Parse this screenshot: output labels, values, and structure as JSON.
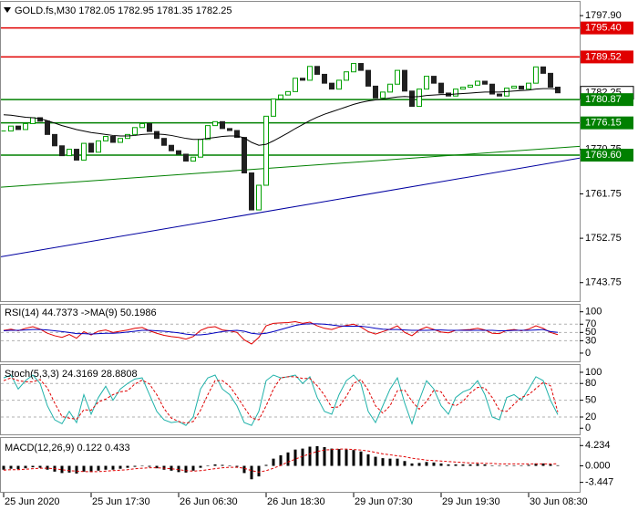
{
  "chart_data": [
    {
      "type": "candlestick",
      "title": "GOLD.fs,M30  1782.05 1782.95 1781.35 1782.25",
      "categories": [
        "25 Jun 2020",
        null,
        null,
        null,
        null,
        null,
        null,
        null,
        null,
        null,
        null,
        null,
        "25 Jun 17:30",
        null,
        null,
        null,
        null,
        null,
        null,
        null,
        null,
        null,
        null,
        null,
        "26 Jun 06:30",
        null,
        null,
        null,
        null,
        null,
        null,
        null,
        null,
        null,
        null,
        null,
        "26 Jun 18:30",
        null,
        null,
        null,
        null,
        null,
        null,
        null,
        null,
        null,
        null,
        null,
        "29 Jun 07:30",
        null,
        null,
        null,
        null,
        null,
        null,
        null,
        null,
        null,
        null,
        null,
        "29 Jun 19:30",
        null,
        null,
        null,
        null,
        null,
        null,
        null,
        null,
        null,
        null,
        null,
        "30 Jun 08:30",
        null,
        null,
        null,
        null
      ],
      "close": [
        1774.5,
        1775.5,
        1774.8,
        1776.0,
        1777.2,
        1776.5,
        1773.8,
        1771.5,
        1769.5,
        1770.8,
        1768.6,
        1772.0,
        1770.2,
        1772.5,
        1773.4,
        1772.2,
        1773.0,
        1773.8,
        1775.2,
        1776.0,
        1774.4,
        1773.0,
        1771.6,
        1770.5,
        1769.8,
        1768.4,
        1769.2,
        1772.8,
        1775.6,
        1776.4,
        1775.0,
        1774.6,
        1773.2,
        1766.0,
        1758.5,
        1763.5,
        1777.5,
        1781.0,
        1781.8,
        1782.5,
        1785.2,
        1784.8,
        1787.6,
        1786.0,
        1784.2,
        1783.0,
        1784.8,
        1786.5,
        1788.2,
        1786.8,
        1783.6,
        1781.2,
        1782.4,
        1784.0,
        1786.8,
        1782.6,
        1779.5,
        1783.0,
        1785.6,
        1784.2,
        1782.2,
        1781.6,
        1783.0,
        1783.4,
        1783.8,
        1784.6,
        1784.0,
        1782.0,
        1781.6,
        1783.2,
        1783.6,
        1783.0,
        1784.2,
        1787.5,
        1786.2,
        1783.4,
        1782.25
      ],
      "up_color": "#00a000",
      "down_color": "#202020",
      "ma": {
        "color": "#000000",
        "values": [
          1777.8,
          1777.7,
          1777.5,
          1777.3,
          1777.2,
          1777.0,
          1776.6,
          1776.1,
          1775.6,
          1775.2,
          1774.8,
          1774.5,
          1774.2,
          1774.0,
          1773.8,
          1773.6,
          1773.5,
          1773.5,
          1773.6,
          1773.8,
          1773.9,
          1773.9,
          1773.8,
          1773.6,
          1773.3,
          1773.0,
          1772.8,
          1772.8,
          1773.0,
          1773.2,
          1773.4,
          1773.5,
          1773.5,
          1773.1,
          1772.2,
          1771.6,
          1771.8,
          1772.5,
          1773.3,
          1774.1,
          1775.0,
          1775.8,
          1776.6,
          1777.3,
          1777.9,
          1778.4,
          1778.9,
          1779.4,
          1779.9,
          1780.3,
          1780.6,
          1780.8,
          1781.0,
          1781.2,
          1781.4,
          1781.5,
          1781.4,
          1781.5,
          1781.7,
          1781.8,
          1781.9,
          1781.9,
          1782.0,
          1782.1,
          1782.2,
          1782.3,
          1782.4,
          1782.4,
          1782.4,
          1782.5,
          1782.6,
          1782.7,
          1782.8,
          1783.0,
          1783.1,
          1783.1,
          1783.0
        ]
      },
      "levels": [
        {
          "value": 1795.4,
          "label": "1795.40",
          "color": "#e00000"
        },
        {
          "value": 1789.52,
          "label": "1789.52",
          "color": "#e00000"
        },
        {
          "value": 1780.87,
          "label": "1780.87",
          "color": "#008000"
        },
        {
          "value": 1776.15,
          "label": "1776.15",
          "color": "#008000"
        },
        {
          "value": 1769.6,
          "label": "1769.60",
          "color": "#008000"
        }
      ],
      "trendlines": [
        {
          "color": "#008000",
          "values": [
            1763.1,
            1771.4
          ]
        },
        {
          "color": "#0000a0",
          "values": [
            1749.0,
            1769.0
          ]
        }
      ],
      "price_label": {
        "value": 1782.25,
        "label": "1782.25"
      },
      "ylim": [
        1740.0,
        1800.7
      ],
      "yticks": [
        {
          "value": 1797.9,
          "label": "1797.90"
        },
        1770.75,
        1761.75,
        1752.75,
        1743.75
      ],
      "grid": false
    },
    {
      "type": "line",
      "title": "RSI(14) 44.7373 ->MA(9) 50.1986",
      "series": [
        {
          "color": "#e00000",
          "values": [
            55,
            58,
            54,
            60,
            64,
            58,
            48,
            42,
            38,
            45,
            36,
            52,
            44,
            53,
            56,
            50,
            53,
            56,
            60,
            62,
            54,
            48,
            43,
            40,
            38,
            34,
            40,
            55,
            62,
            64,
            56,
            54,
            50,
            32,
            22,
            38,
            66,
            72,
            73,
            74,
            76,
            72,
            75,
            66,
            60,
            57,
            63,
            67,
            70,
            63,
            52,
            46,
            52,
            58,
            66,
            50,
            42,
            56,
            63,
            57,
            51,
            49,
            55,
            56,
            57,
            60,
            56,
            48,
            47,
            55,
            57,
            54,
            58,
            66,
            60,
            50,
            44.7
          ]
        },
        {
          "color": "#0000c0",
          "values": [
            54,
            55,
            55,
            56,
            57,
            57,
            56,
            54,
            52,
            50,
            47,
            47,
            46,
            47,
            48,
            48,
            49,
            51,
            53,
            55,
            55,
            54,
            53,
            51,
            49,
            46,
            44,
            44,
            46,
            49,
            52,
            54,
            55,
            53,
            48,
            46,
            48,
            52,
            57,
            62,
            67,
            70,
            71,
            71,
            70,
            68,
            66,
            65,
            65,
            65,
            63,
            60,
            58,
            57,
            57,
            56,
            55,
            55,
            55,
            56,
            56,
            55,
            55,
            55,
            55,
            55,
            55,
            55,
            54,
            54,
            55,
            55,
            55,
            56,
            57,
            52,
            50.2
          ]
        }
      ],
      "ylim": [
        -20,
        117
      ],
      "yticks": [
        0,
        30,
        50,
        70,
        100
      ],
      "grid": true
    },
    {
      "type": "line",
      "title": "Stoch(5,3,3) 24.3169 28.8808",
      "series": [
        {
          "color": "#20b2aa",
          "dash": false,
          "values": [
            90,
            95,
            70,
            85,
            95,
            80,
            40,
            15,
            8,
            30,
            10,
            60,
            25,
            55,
            75,
            50,
            70,
            80,
            88,
            90,
            60,
            30,
            15,
            10,
            12,
            5,
            20,
            70,
            90,
            95,
            70,
            60,
            40,
            10,
            5,
            30,
            85,
            95,
            90,
            92,
            95,
            80,
            92,
            55,
            30,
            25,
            60,
            85,
            95,
            80,
            30,
            10,
            40,
            70,
            90,
            45,
            8,
            50,
            85,
            70,
            40,
            25,
            55,
            65,
            70,
            85,
            60,
            20,
            15,
            55,
            60,
            50,
            70,
            92,
            85,
            50,
            24.3
          ]
        },
        {
          "color": "#e00000",
          "dash": true,
          "values": [
            85,
            90,
            85,
            83,
            83,
            87,
            72,
            45,
            21,
            18,
            16,
            33,
            32,
            47,
            52,
            60,
            65,
            67,
            79,
            86,
            79,
            60,
            35,
            18,
            12,
            9,
            12,
            32,
            60,
            85,
            85,
            75,
            57,
            37,
            18,
            15,
            40,
            70,
            90,
            92,
            92,
            89,
            89,
            76,
            59,
            37,
            38,
            57,
            80,
            87,
            68,
            40,
            27,
            40,
            67,
            68,
            48,
            34,
            48,
            68,
            65,
            45,
            40,
            48,
            63,
            73,
            72,
            55,
            32,
            30,
            43,
            55,
            60,
            71,
            82,
            76,
            28.9
          ]
        }
      ],
      "ylim": [
        -11,
        113
      ],
      "yticks": [
        0,
        20,
        50,
        80,
        100
      ],
      "grid": true
    },
    {
      "type": "macd",
      "title": "MACD(12,26,9) 0.122 0.433",
      "bars": {
        "color": "#000000",
        "values": [
          -0.8,
          -0.6,
          -0.7,
          -0.5,
          -0.3,
          -0.4,
          -0.8,
          -1.2,
          -1.5,
          -1.4,
          -1.6,
          -1.2,
          -1.3,
          -1.0,
          -0.8,
          -0.8,
          -0.6,
          -0.4,
          -0.2,
          0.0,
          -0.2,
          -0.5,
          -0.8,
          -1.0,
          -1.3,
          -1.4,
          -1.0,
          -0.4,
          0.1,
          0.3,
          0.2,
          0.1,
          -0.2,
          -1.5,
          -2.8,
          -2.2,
          0.2,
          1.5,
          2.2,
          2.8,
          3.4,
          3.6,
          4.0,
          4.1,
          3.9,
          3.6,
          3.5,
          3.4,
          3.3,
          3.0,
          2.4,
          1.9,
          1.6,
          1.5,
          1.5,
          1.0,
          0.5,
          0.6,
          0.8,
          0.7,
          0.5,
          0.3,
          0.3,
          0.3,
          0.3,
          0.4,
          0.3,
          0.1,
          0.0,
          0.1,
          0.1,
          0.1,
          0.2,
          0.5,
          0.5,
          0.3,
          0.122
        ]
      },
      "signal": {
        "color": "#e00000",
        "values": [
          -0.9,
          -0.8,
          -0.8,
          -0.7,
          -0.6,
          -0.5,
          -0.5,
          -0.6,
          -0.8,
          -1.0,
          -1.1,
          -1.2,
          -1.2,
          -1.2,
          -1.1,
          -1.0,
          -0.9,
          -0.8,
          -0.6,
          -0.5,
          -0.4,
          -0.4,
          -0.5,
          -0.6,
          -0.8,
          -1.0,
          -1.1,
          -1.0,
          -0.8,
          -0.6,
          -0.4,
          -0.3,
          -0.3,
          -0.5,
          -1.0,
          -1.3,
          -1.0,
          -0.5,
          0.1,
          0.8,
          1.4,
          2.0,
          2.5,
          3.0,
          3.3,
          3.4,
          3.5,
          3.5,
          3.4,
          3.3,
          3.1,
          2.8,
          2.5,
          2.3,
          2.1,
          1.9,
          1.6,
          1.4,
          1.2,
          1.1,
          1.0,
          0.9,
          0.8,
          0.7,
          0.6,
          0.6,
          0.5,
          0.5,
          0.4,
          0.4,
          0.4,
          0.4,
          0.4,
          0.4,
          0.4,
          0.4,
          0.433
        ]
      },
      "ylim": [
        -5.42,
        5.81
      ],
      "yticks": [
        -3.447,
        {
          "value": 0,
          "label": "0.000"
        },
        4.234
      ],
      "grid": false
    }
  ]
}
